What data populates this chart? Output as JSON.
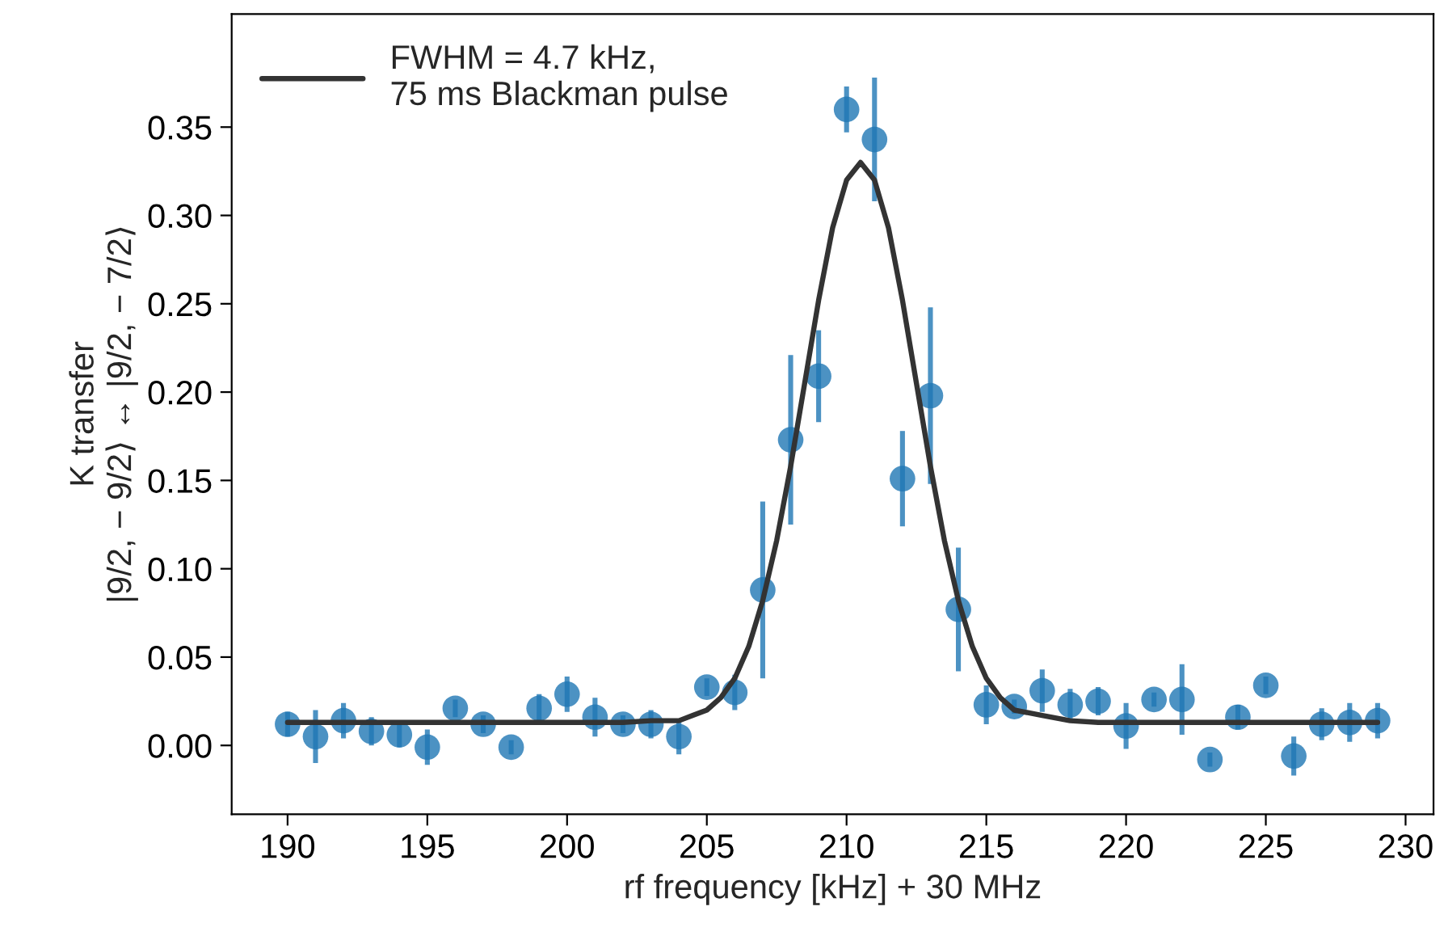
{
  "chart_data": {
    "type": "scatter",
    "xlabel": "rf frequency [kHz] + 30 MHz",
    "ylabel": "K transfer\n|9/2, − 9/2⟩ ↔ |9/2, − 7/2⟩",
    "xlim": [
      188.0,
      231.0
    ],
    "xticks": [
      190,
      195,
      200,
      205,
      210,
      215,
      220,
      225,
      230
    ],
    "ylim": [
      -0.039,
      0.414
    ],
    "yticks": [
      {
        "value": 0,
        "label": "0.00"
      },
      0.05,
      {
        "value": 0.1,
        "label": "0.10"
      },
      0.15,
      {
        "value": 0.2,
        "label": "0.20"
      },
      0.25,
      {
        "value": 0.3,
        "label": "0.30"
      },
      0.35
    ],
    "legend": "top left",
    "grid": false,
    "series": [
      {
        "color": "#1f77b4",
        "marker": "circle",
        "x": [
          190,
          191,
          192,
          193,
          194,
          195,
          196,
          197,
          198,
          199,
          200,
          201,
          202,
          203,
          204,
          205,
          206,
          207,
          208,
          209,
          210,
          211,
          212,
          213,
          214,
          215,
          216,
          217,
          218,
          219,
          220,
          221,
          222,
          223,
          224,
          225,
          226,
          227,
          228,
          229
        ],
        "values": [
          0.012,
          0.005,
          0.014,
          0.008,
          0.006,
          -0.001,
          0.021,
          0.012,
          -0.001,
          0.021,
          0.029,
          0.016,
          0.012,
          0.012,
          0.005,
          0.033,
          0.03,
          0.088,
          0.173,
          0.209,
          0.36,
          0.343,
          0.151,
          0.198,
          0.077,
          0.023,
          0.022,
          0.031,
          0.023,
          0.025,
          0.011,
          0.026,
          0.026,
          -0.008,
          0.016,
          0.034,
          -0.006,
          0.012,
          0.013,
          0.014
        ],
        "errors": [
          0.007,
          0.015,
          0.01,
          0.008,
          0.007,
          0.01,
          0.005,
          0.005,
          0.004,
          0.008,
          0.01,
          0.011,
          0.005,
          0.008,
          0.01,
          0.005,
          0.01,
          0.05,
          0.048,
          0.026,
          0.013,
          0.035,
          0.027,
          0.05,
          0.035,
          0.011,
          0.004,
          0.012,
          0.009,
          0.008,
          0.013,
          0.004,
          0.02,
          0.004,
          0.007,
          0.005,
          0.011,
          0.009,
          0.011,
          0.01
        ]
      },
      {
        "type": "line",
        "name": "FWHM = 4.7 kHz,\n75 ms Blackman pulse",
        "color": "#333333",
        "line_style": "solid",
        "marker": "none",
        "x": [
          190,
          202,
          203,
          204,
          204.5,
          205,
          205.5,
          206,
          206.5,
          207,
          207.5,
          208,
          208.5,
          209,
          209.5,
          210,
          210.5,
          211,
          211.5,
          212,
          212.5,
          213,
          213.5,
          214,
          214.5,
          215,
          215.5,
          216,
          217,
          218,
          219,
          229
        ],
        "values": [
          0.013,
          0.013,
          0.014,
          0.014,
          0.017,
          0.02,
          0.027,
          0.038,
          0.056,
          0.082,
          0.116,
          0.158,
          0.205,
          0.252,
          0.293,
          0.32,
          0.33,
          0.32,
          0.293,
          0.252,
          0.205,
          0.158,
          0.116,
          0.082,
          0.056,
          0.038,
          0.027,
          0.02,
          0.017,
          0.014,
          0.013,
          0.013
        ]
      }
    ]
  }
}
